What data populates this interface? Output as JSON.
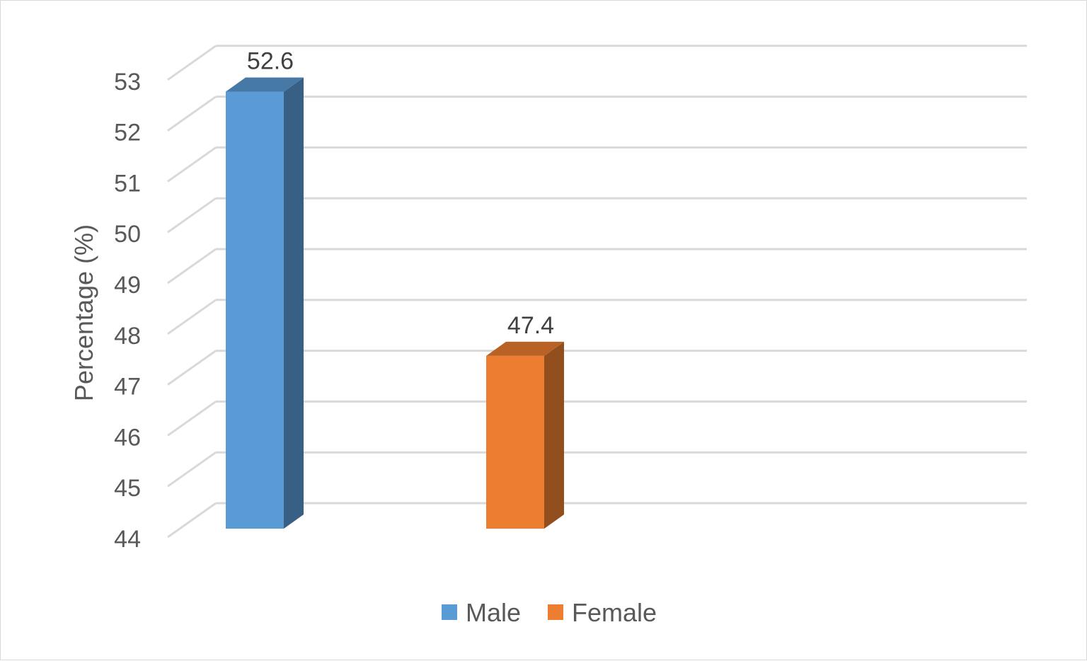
{
  "chart_data": {
    "type": "bar",
    "style": "3d-column",
    "categories": [
      "Male",
      "Female"
    ],
    "values": [
      52.6,
      47.4
    ],
    "data_labels": [
      "52.6",
      "47.4"
    ],
    "ylabel": "Percentage (%)",
    "ylim": [
      44,
      53
    ],
    "yticks": [
      "44",
      "45",
      "46",
      "47",
      "48",
      "49",
      "50",
      "51",
      "52",
      "53"
    ],
    "grid": true,
    "legend": {
      "placement": "bottom",
      "entries": [
        "Male",
        "Female"
      ]
    },
    "colors": {
      "Male": "#5b9bd5",
      "Female": "#ed7d31"
    }
  }
}
